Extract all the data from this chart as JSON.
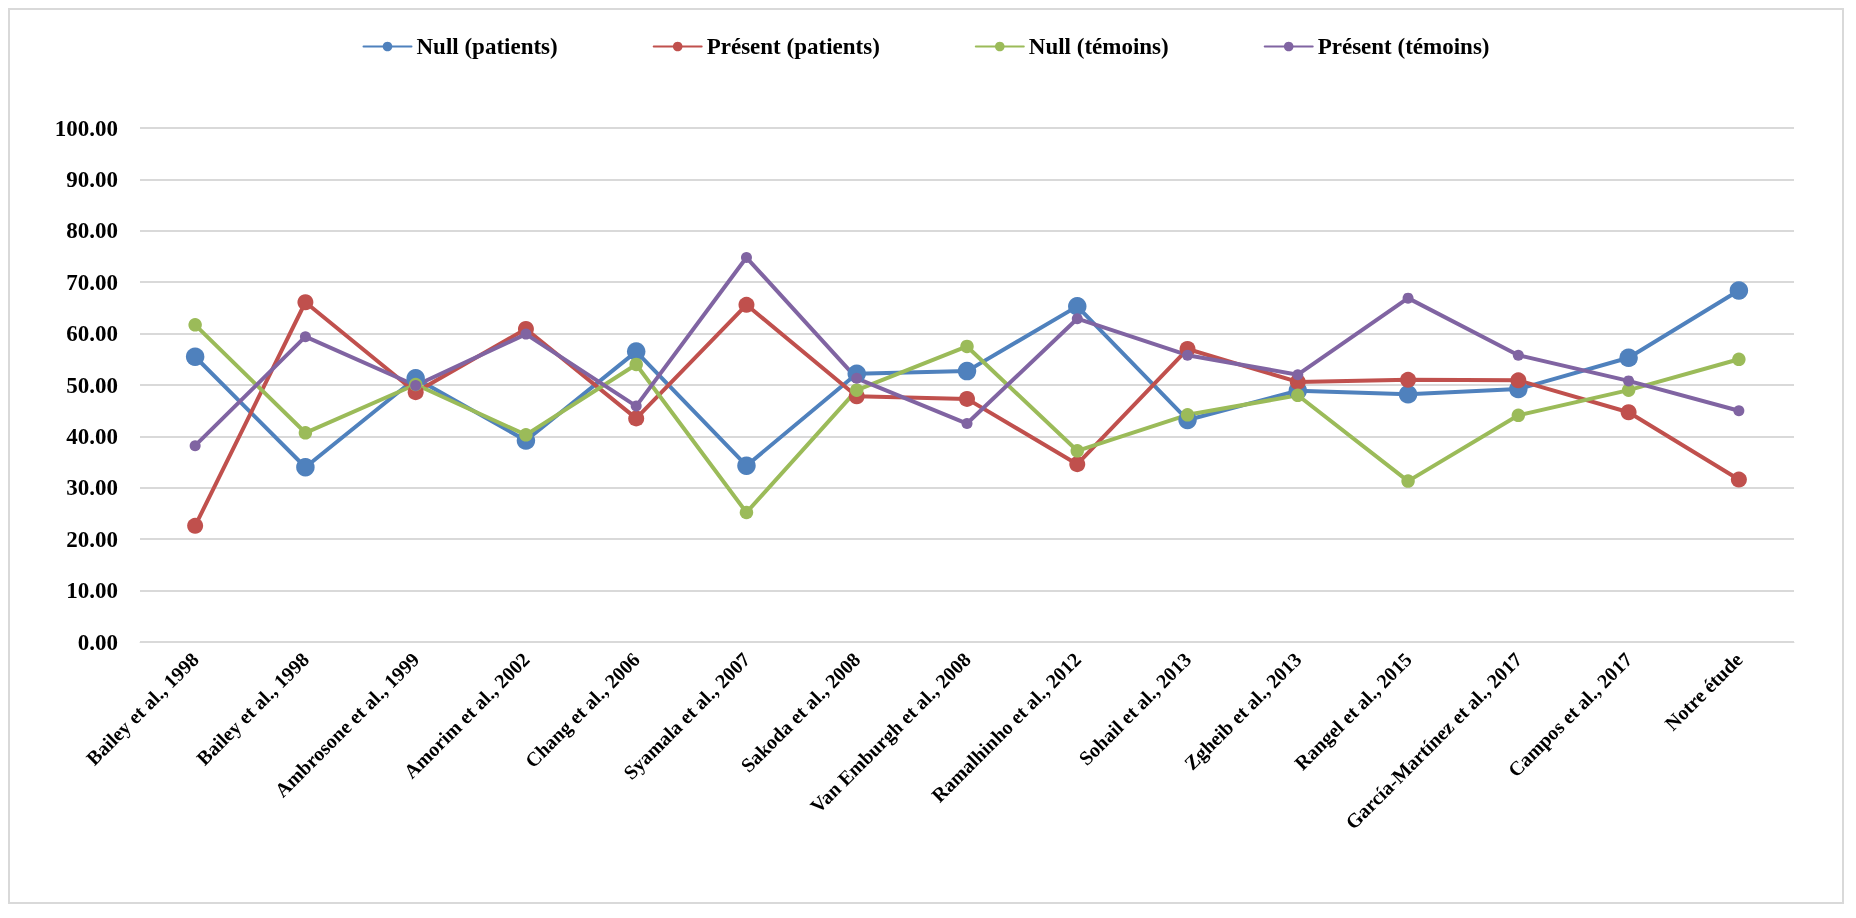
{
  "chart_data": {
    "type": "line",
    "categories": [
      "Bailey et al., 1998",
      "Bailey et al., 1998",
      "Ambrosone et al., 1999",
      "Amorim et al., 2002",
      "Chang et al., 2006",
      "Syamala et al., 2007",
      "Sakoda et al., 2008",
      "Van Emburgh et al., 2008",
      "Ramalhinho et al., 2012",
      "Sohail et al., 2013",
      "Zgheib et al., 2013",
      "Rangel et al., 2015",
      "García-Martínez et al., 2017",
      "Campos et al., 2017",
      "Notre étude"
    ],
    "series": [
      {
        "name": "Null (patients)",
        "color": "#4f81bd",
        "values": [
          55.5,
          34,
          51.3,
          39.2,
          56.5,
          34.3,
          52.2,
          52.7,
          65.3,
          43.2,
          48.9,
          48.2,
          49.2,
          55.3,
          68.4
        ]
      },
      {
        "name": "Présent (patients)",
        "color": "#c0504d",
        "values": [
          22.6,
          66.1,
          48.6,
          60.9,
          43.5,
          65.6,
          47.8,
          47.3,
          34.6,
          57.0,
          50.6,
          51.0,
          50.9,
          44.7,
          31.6
        ]
      },
      {
        "name": "Null (témoins)",
        "color": "#9bbb59",
        "values": [
          61.7,
          40.7,
          50.1,
          40.3,
          54.0,
          25.2,
          49.0,
          57.5,
          37.2,
          44.2,
          48.0,
          31.3,
          44.1,
          49.0,
          55.0
        ]
      },
      {
        "name": "Présent (témoins)",
        "color": "#8064a2",
        "values": [
          38.2,
          59.4,
          49.9,
          59.9,
          45.9,
          74.8,
          51.3,
          42.5,
          62.9,
          55.8,
          52.0,
          66.9,
          55.8,
          50.8,
          45.0
        ]
      }
    ],
    "ylim": [
      0,
      100
    ],
    "yticks": [
      {
        "value": 0,
        "label": "0.00"
      },
      {
        "value": 10,
        "label": "10.00"
      },
      {
        "value": 20,
        "label": "20.00"
      },
      {
        "value": 30,
        "label": "30.00"
      },
      {
        "value": 40,
        "label": "40.00"
      },
      {
        "value": 50,
        "label": "50.00"
      },
      {
        "value": 60,
        "label": "60.00"
      },
      {
        "value": 70,
        "label": "70.00"
      },
      {
        "value": 80,
        "label": "80.00"
      },
      {
        "value": 90,
        "label": "90.00"
      },
      {
        "value": 100,
        "label": "100.00"
      }
    ],
    "grid": "y",
    "legend": "top",
    "marker": "circle",
    "line_style": "solid"
  }
}
